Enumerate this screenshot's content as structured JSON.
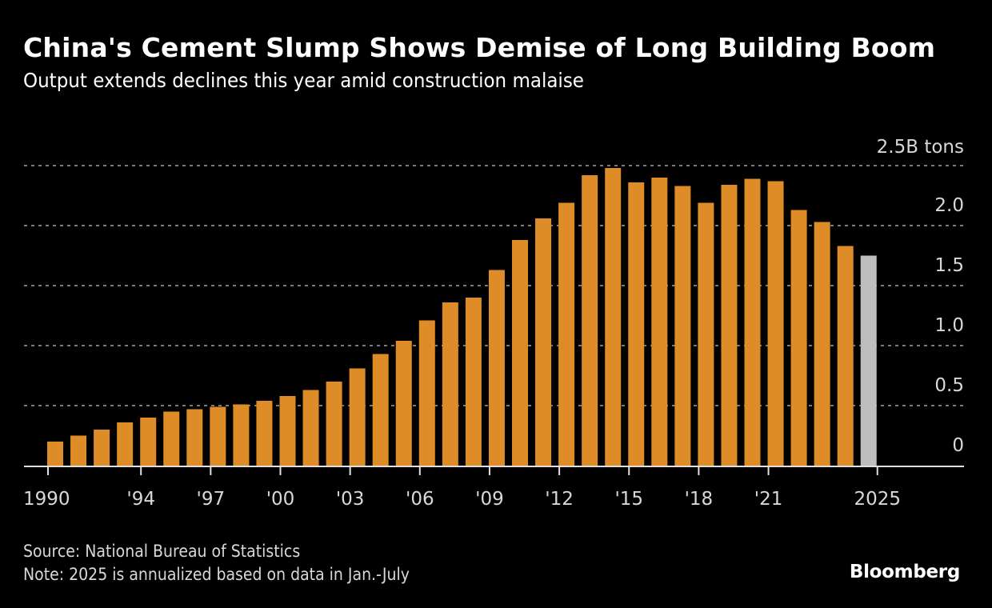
{
  "header": {
    "title": "China's Cement Slump Shows Demise of Long Building Boom",
    "subtitle": "Output extends declines this year amid construction malaise"
  },
  "footer": {
    "source": "Source: National Bureau of Statistics",
    "note": "Note: 2025 is annualized based on data in Jan.-July",
    "brand": "Bloomberg"
  },
  "colors": {
    "bar": "#DE8C27",
    "bar_estimate": "#BEBEBE",
    "grid": "#7a7a7a",
    "axis": "#e0e0e0"
  },
  "chart_data": {
    "type": "bar",
    "title": "China's Cement Slump Shows Demise of Long Building Boom",
    "subtitle": "Output extends declines this year amid construction malaise",
    "xlabel": "",
    "ylabel": "B tons",
    "unit_label": "2.5B tons",
    "ylim": [
      0,
      2.5
    ],
    "grid": true,
    "y_axis_side": "right",
    "yticks": [
      0,
      0.5,
      1.0,
      1.5,
      2.0,
      2.5
    ],
    "ytick_labels": [
      "0",
      "0.5",
      "1.0",
      "1.5",
      "2.0",
      "2.5B tons"
    ],
    "xtick_years": [
      1990,
      1994,
      1997,
      2000,
      2003,
      2006,
      2009,
      2012,
      2015,
      2018,
      2021,
      2025
    ],
    "xtick_labels": [
      "1990",
      "'94",
      "'97",
      "'00",
      "'03",
      "'06",
      "'09",
      "'12",
      "'15",
      "'18",
      "'21",
      "2025"
    ],
    "categories": [
      1990,
      1991,
      1992,
      1993,
      1994,
      1995,
      1996,
      1997,
      1998,
      1999,
      2000,
      2001,
      2002,
      2003,
      2004,
      2005,
      2006,
      2007,
      2008,
      2009,
      2010,
      2011,
      2012,
      2013,
      2014,
      2015,
      2016,
      2017,
      2018,
      2019,
      2020,
      2021,
      2022,
      2023,
      2024,
      2025
    ],
    "values": [
      0.2,
      0.25,
      0.3,
      0.36,
      0.4,
      0.45,
      0.47,
      0.49,
      0.51,
      0.54,
      0.58,
      0.63,
      0.7,
      0.81,
      0.93,
      1.04,
      1.21,
      1.36,
      1.4,
      1.63,
      1.88,
      2.06,
      2.19,
      2.42,
      2.48,
      2.36,
      2.4,
      2.33,
      2.19,
      2.34,
      2.39,
      2.37,
      2.13,
      2.03,
      1.83,
      1.75
    ],
    "estimated": [
      2025
    ],
    "annotations": [
      "2025 is annualized based on data in Jan.-July"
    ]
  }
}
